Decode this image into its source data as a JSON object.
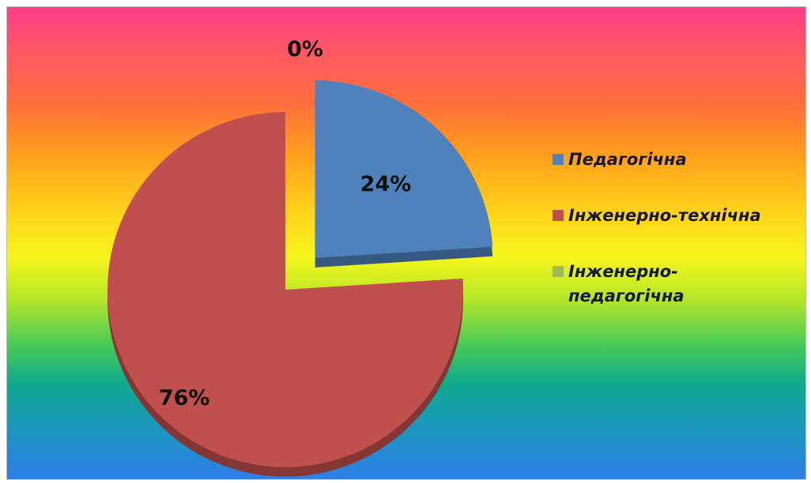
{
  "chart_data": {
    "type": "pie",
    "categories": [
      "Педагогічна",
      "Інженерно-технічна",
      "Інженерно-педагогічна"
    ],
    "values": [
      24,
      76,
      0
    ],
    "data_labels": [
      "24%",
      "76%",
      "0%"
    ],
    "colors": [
      "#4f81bd",
      "#c0504d",
      "#9bbb59"
    ],
    "title": "",
    "legend_position": "right",
    "exploded_slice": 0
  }
}
